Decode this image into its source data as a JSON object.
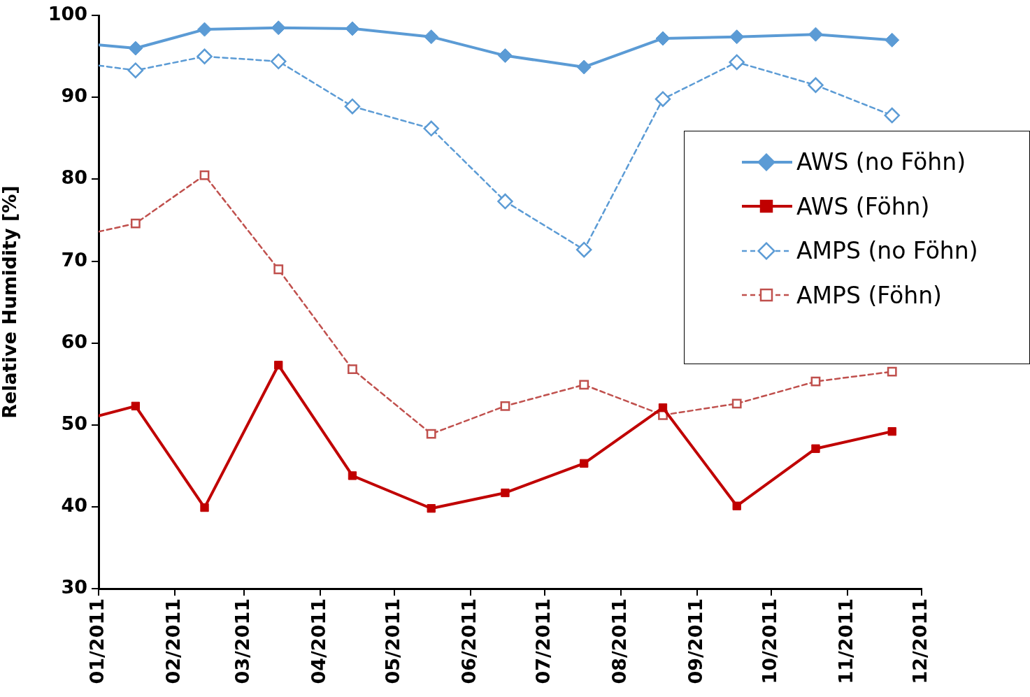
{
  "chart_data": {
    "type": "line",
    "ylabel": "Relative Humidity [%]",
    "x": [
      "2011-01-01",
      "2011-01-16",
      "2011-02-13",
      "2011-03-15",
      "2011-04-14",
      "2011-05-16",
      "2011-06-15",
      "2011-07-17",
      "2011-08-18",
      "2011-09-17",
      "2011-10-19",
      "2011-11-19"
    ],
    "series": [
      {
        "name": "AWS (no Föhn)",
        "color": "#5b9bd5",
        "marker": "diamond",
        "line_style": "solid",
        "values": [
          96.4,
          96.0,
          98.3,
          98.5,
          98.4,
          97.4,
          95.1,
          93.7,
          97.2,
          97.4,
          97.7,
          97.0
        ]
      },
      {
        "name": "AWS (Föhn)",
        "color": "#c00000",
        "marker": "square",
        "line_style": "solid",
        "values": [
          51.1,
          52.3,
          39.9,
          57.3,
          43.8,
          39.8,
          41.7,
          45.3,
          52.1,
          40.1,
          47.1,
          49.2
        ]
      },
      {
        "name": "AMPS (no Föhn)",
        "color": "#5b9bd5",
        "marker": "diamond",
        "line_style": "dashed",
        "values": [
          93.9,
          93.3,
          95.0,
          94.4,
          88.9,
          86.2,
          77.3,
          71.4,
          89.8,
          94.3,
          91.5,
          87.8
        ]
      },
      {
        "name": "AMPS (Föhn)",
        "color": "#c0504d",
        "marker": "square",
        "line_style": "dashed",
        "values": [
          73.6,
          74.6,
          80.5,
          69.0,
          56.8,
          48.9,
          52.3,
          54.9,
          51.2,
          52.6,
          55.3,
          56.5
        ]
      }
    ],
    "xlim": [
      "2011-01",
      "2011-12"
    ],
    "xticks": [
      {
        "value": "2011-01",
        "label": "01/2011"
      },
      {
        "value": "2011-02",
        "label": "02/2011"
      },
      {
        "value": "2011-03",
        "label": "03/2011"
      },
      {
        "value": "2011-04",
        "label": "04/2011"
      },
      {
        "value": "2011-05",
        "label": "05/2011"
      },
      {
        "value": "2011-06",
        "label": "06/2011"
      },
      {
        "value": "2011-07",
        "label": "07/2011"
      },
      {
        "value": "2011-08",
        "label": "08/2011"
      },
      {
        "value": "2011-09",
        "label": "09/2011"
      },
      {
        "value": "2011-10",
        "label": "10/2011"
      },
      {
        "value": "2011-11",
        "label": "11/2011"
      },
      {
        "value": "2011-12",
        "label": "12/2011"
      }
    ],
    "ylim": [
      30,
      100
    ],
    "yticks": [
      30,
      40,
      50,
      60,
      70,
      80,
      90,
      100
    ],
    "grid": false,
    "legend": "right"
  }
}
